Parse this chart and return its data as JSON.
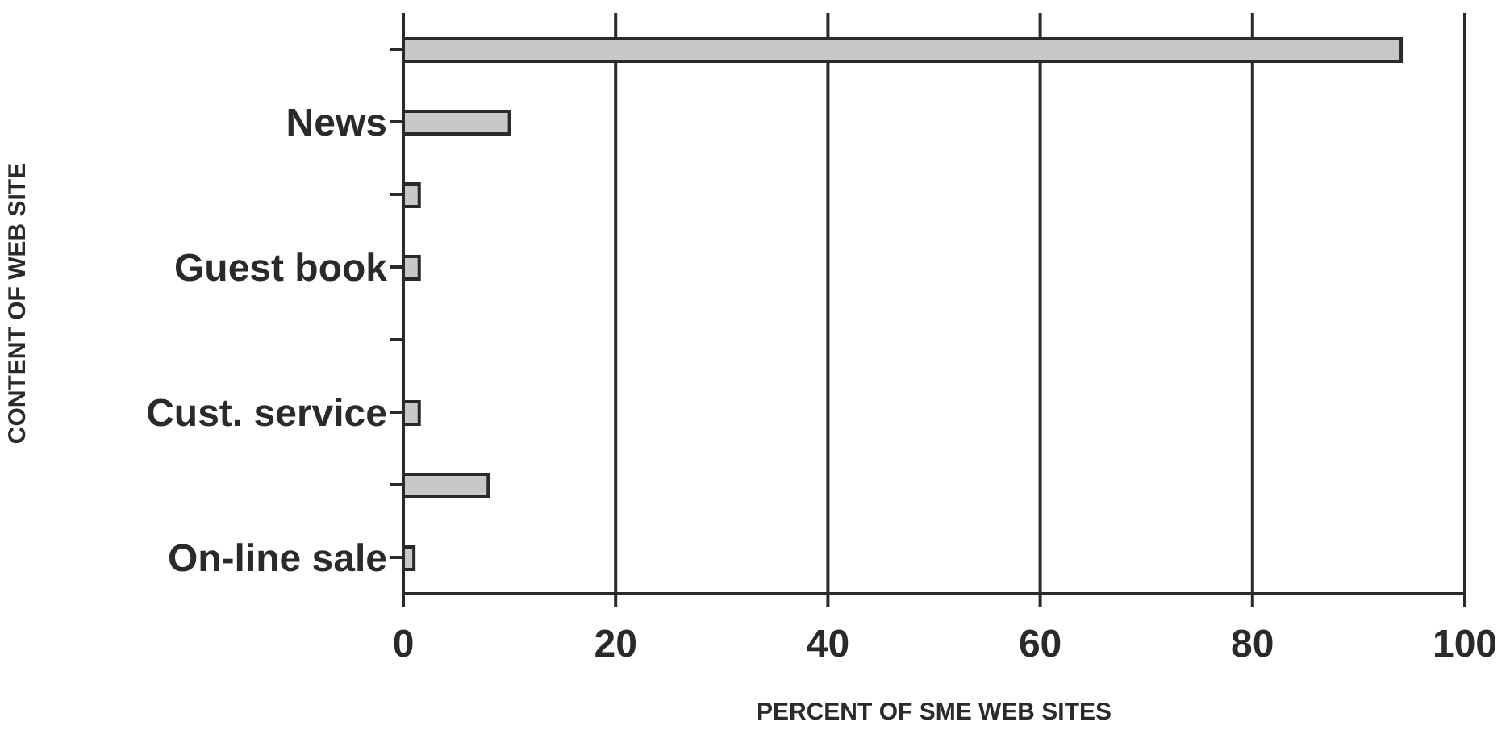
{
  "chart_data": {
    "type": "bar",
    "orientation": "horizontal",
    "xlabel": "PERCENT OF SME WEB SITES",
    "ylabel": "CONTENT OF WEB SITE",
    "categories": [
      null,
      "News",
      null,
      "Guest book",
      null,
      "Cust. service",
      null,
      "On-line sale"
    ],
    "values": [
      94,
      10,
      1.5,
      1.5,
      0,
      1.5,
      8,
      1
    ],
    "color": "#c8c8c8",
    "xlim": [
      0,
      100
    ],
    "xticks": [
      0,
      20,
      40,
      60,
      80,
      100
    ],
    "grid": "x"
  }
}
